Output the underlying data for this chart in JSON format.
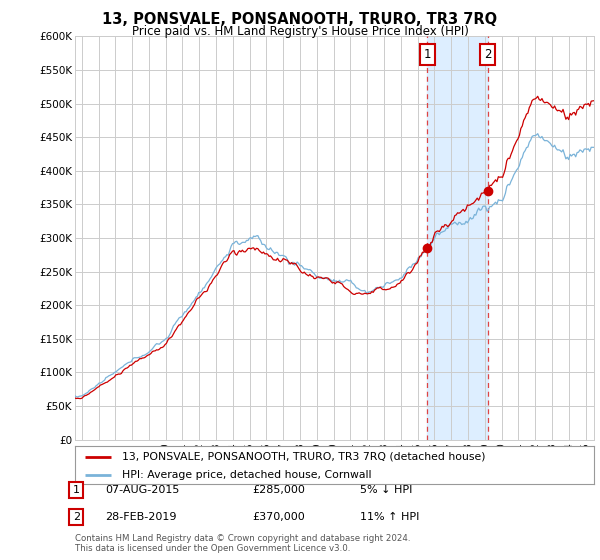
{
  "title": "13, PONSVALE, PONSANOOTH, TRURO, TR3 7RQ",
  "subtitle": "Price paid vs. HM Land Registry's House Price Index (HPI)",
  "legend_line1": "13, PONSVALE, PONSANOOTH, TRURO, TR3 7RQ (detached house)",
  "legend_line2": "HPI: Average price, detached house, Cornwall",
  "footer": "Contains HM Land Registry data © Crown copyright and database right 2024.\nThis data is licensed under the Open Government Licence v3.0.",
  "table": [
    {
      "num": "1",
      "date": "07-AUG-2015",
      "price": "£285,000",
      "hpi": "5% ↓ HPI"
    },
    {
      "num": "2",
      "date": "28-FEB-2019",
      "price": "£370,000",
      "hpi": "11% ↑ HPI"
    }
  ],
  "sale1_x": 2015.58,
  "sale1_y": 285000,
  "sale2_x": 2019.16,
  "sale2_y": 370000,
  "vline1_x": 2015.58,
  "vline2_x": 2019.16,
  "shade_xmin": 2015.58,
  "shade_xmax": 2019.16,
  "ylim": [
    0,
    600000
  ],
  "xlim_left": 1994.6,
  "xlim_right": 2025.5,
  "yticks": [
    0,
    50000,
    100000,
    150000,
    200000,
    250000,
    300000,
    350000,
    400000,
    450000,
    500000,
    550000,
    600000
  ],
  "ytick_labels": [
    "£0",
    "£50K",
    "£100K",
    "£150K",
    "£200K",
    "£250K",
    "£300K",
    "£350K",
    "£400K",
    "£450K",
    "£500K",
    "£550K",
    "£600K"
  ],
  "xticks": [
    1995,
    1996,
    1997,
    1998,
    1999,
    2000,
    2001,
    2002,
    2003,
    2004,
    2005,
    2006,
    2007,
    2008,
    2009,
    2010,
    2011,
    2012,
    2013,
    2014,
    2015,
    2016,
    2017,
    2018,
    2019,
    2020,
    2021,
    2022,
    2023,
    2024,
    2025
  ],
  "hpi_color": "#7ab3d9",
  "house_color": "#cc0000",
  "shade_color": "#ddeeff",
  "vline_color": "#dd4444",
  "grid_color": "#cccccc",
  "bg_color": "#ffffff"
}
